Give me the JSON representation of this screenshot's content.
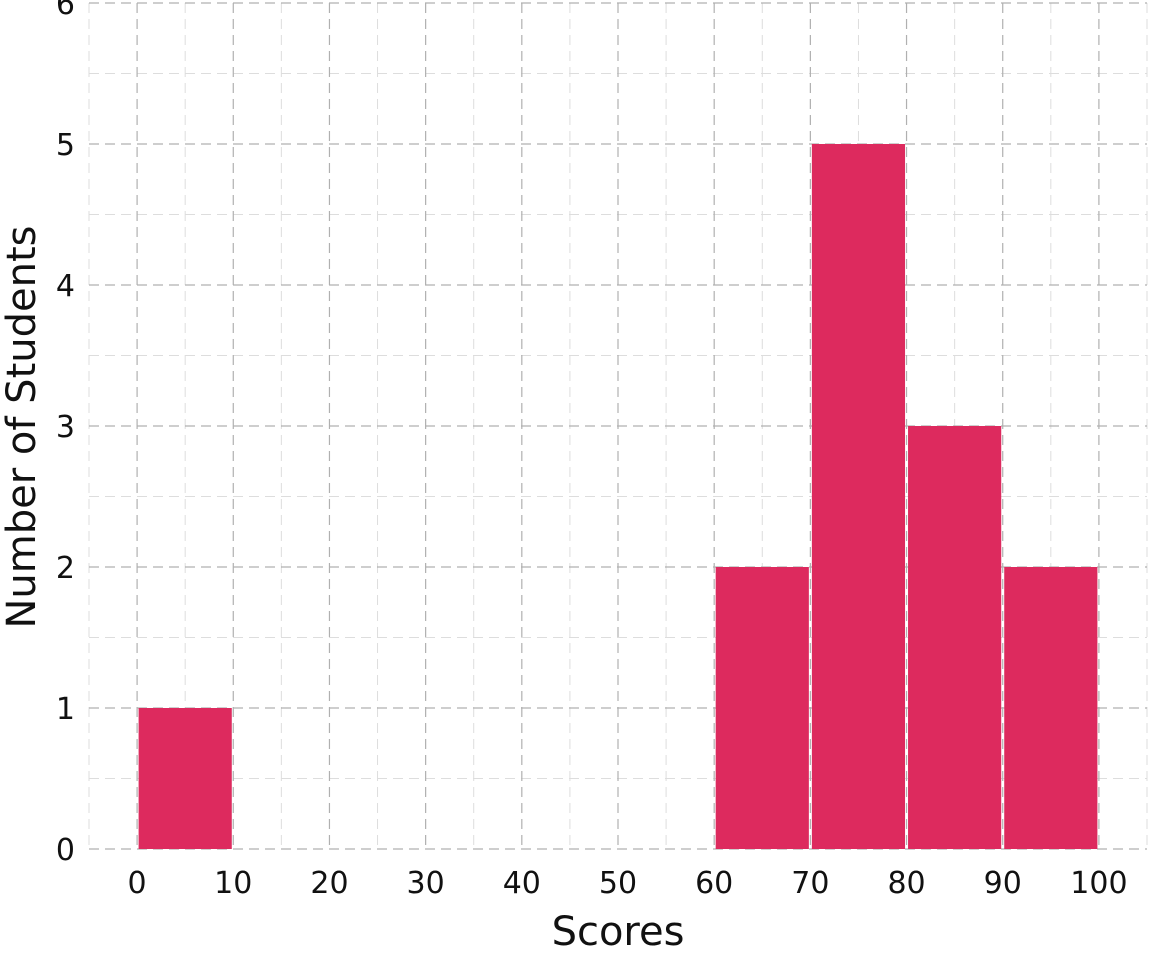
{
  "chart_data": {
    "type": "bar",
    "title": "",
    "xlabel": "Scores",
    "ylabel": "Number of Students",
    "bins": [
      {
        "start": 0,
        "end": 10,
        "count": 1
      },
      {
        "start": 60,
        "end": 70,
        "count": 2
      },
      {
        "start": 70,
        "end": 80,
        "count": 5
      },
      {
        "start": 80,
        "end": 90,
        "count": 3
      },
      {
        "start": 90,
        "end": 100,
        "count": 2
      }
    ],
    "xlim": [
      -5,
      105
    ],
    "ylim": [
      0,
      6
    ],
    "xticks": [
      0,
      10,
      20,
      30,
      40,
      50,
      60,
      70,
      80,
      90,
      100
    ],
    "yticks": [
      0,
      1,
      2,
      3,
      4,
      5,
      6
    ],
    "grid": true,
    "bar_color": "#dd2a5e",
    "grid_color": "#b0b0b0",
    "minor_grid_color": "#dddddd"
  }
}
